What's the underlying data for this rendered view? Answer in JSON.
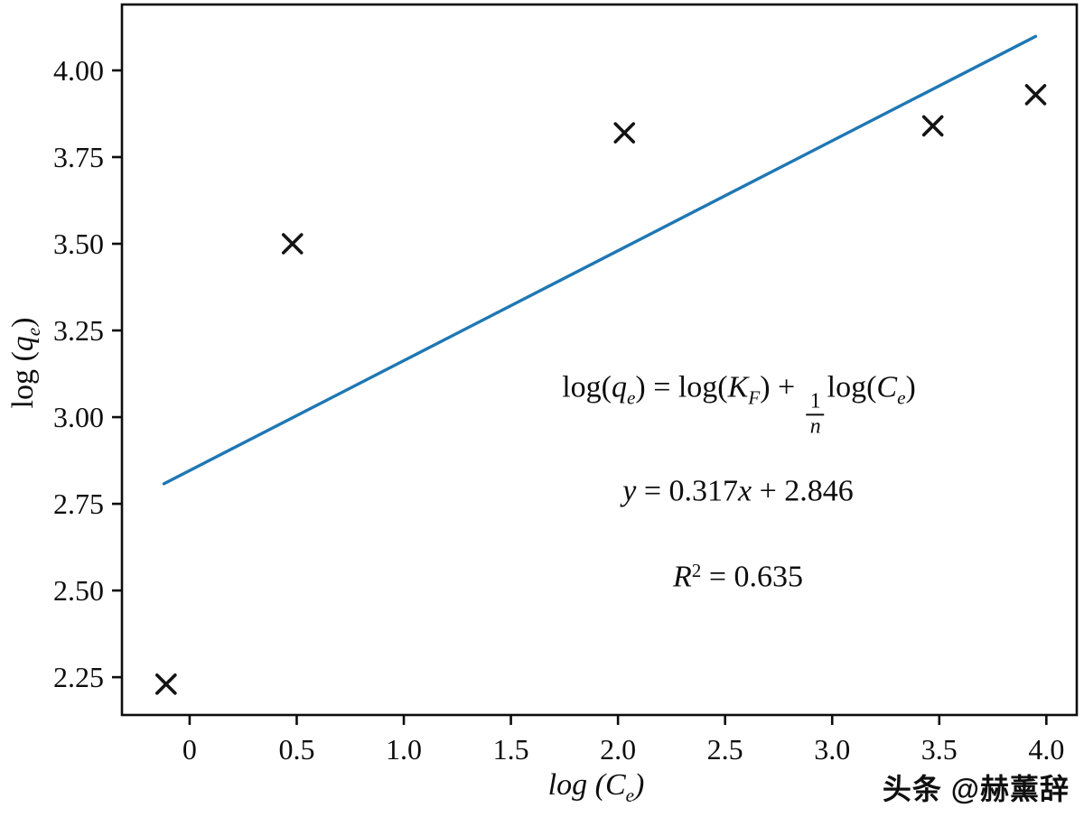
{
  "figure": {
    "watermark": "头条 @赫薰辞"
  },
  "chart_data": {
    "type": "scatter",
    "title": "",
    "xlabel": "log (Ce)",
    "ylabel": "log (qe)",
    "xlabel_parts": {
      "main": "log (C",
      "sub": "e",
      "close": ")"
    },
    "ylabel_parts": {
      "main": "log (",
      "var": "q",
      "sub": "e",
      "close": ")"
    },
    "xlim": [
      -0.316,
      4.142
    ],
    "ylim": [
      2.141,
      4.19
    ],
    "grid": false,
    "legend": "none",
    "axis_color": "#0d0d0d",
    "x_ticks": [
      {
        "value": 0,
        "label": "0"
      },
      {
        "value": 0.5,
        "label": "0.5"
      },
      {
        "value": 1.0,
        "label": "1.0"
      },
      {
        "value": 1.5,
        "label": "1.5"
      },
      {
        "value": 2.0,
        "label": "2.0"
      },
      {
        "value": 2.5,
        "label": "2.5"
      },
      {
        "value": 3.0,
        "label": "3.0"
      },
      {
        "value": 3.5,
        "label": "3.5"
      },
      {
        "value": 4.0,
        "label": "4.0"
      }
    ],
    "y_ticks": [
      {
        "value": 4.0,
        "label": "4.00"
      },
      {
        "value": 3.75,
        "label": "3.75"
      },
      {
        "value": 3.5,
        "label": "3.50"
      },
      {
        "value": 3.25,
        "label": "3.25"
      },
      {
        "value": 3.0,
        "label": "3.00"
      },
      {
        "value": 2.75,
        "label": "2.75"
      },
      {
        "value": 2.5,
        "label": "2.50"
      },
      {
        "value": 2.25,
        "label": "2.25"
      }
    ],
    "points": [
      {
        "x": -0.11,
        "y": 2.23
      },
      {
        "x": 0.48,
        "y": 3.5
      },
      {
        "x": 2.03,
        "y": 3.82
      },
      {
        "x": 3.47,
        "y": 3.84
      },
      {
        "x": 3.95,
        "y": 3.93
      }
    ],
    "marker": {
      "shape": "x",
      "color": "#141414",
      "size": 10,
      "stroke_width": 3.6
    },
    "fit_line": {
      "slope": 0.317,
      "intercept": 2.846,
      "x_start": -0.12,
      "x_end": 3.95,
      "color": "#1f77b4",
      "stroke_width": 3.4
    },
    "r_squared": 0.635,
    "annotations": {
      "model_equation": {
        "t1": "log(",
        "v1": "q",
        "s1": "e",
        "t2": ") = log(",
        "v2": "K",
        "s2": "F",
        "t3": ") + ",
        "frac_num": "1",
        "frac_den": "n",
        "t4": "log(",
        "v3": "C",
        "s3": "e",
        "t5": ")"
      },
      "fit_equation": {
        "v1": "y",
        "t1": " = 0.317",
        "v2": "x",
        "t2": " + 2.846"
      },
      "r_squared_text": {
        "v1": "R",
        "sup": "2",
        "t1": " = 0.635"
      }
    }
  }
}
